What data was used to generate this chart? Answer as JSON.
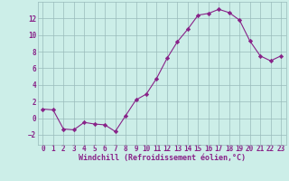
{
  "x": [
    0,
    1,
    2,
    3,
    4,
    5,
    6,
    7,
    8,
    9,
    10,
    11,
    12,
    13,
    14,
    15,
    16,
    17,
    18,
    19,
    20,
    21,
    22,
    23
  ],
  "y": [
    1.1,
    1.0,
    -1.3,
    -1.4,
    -0.5,
    -0.7,
    -0.8,
    -1.6,
    0.3,
    2.2,
    2.9,
    4.8,
    7.2,
    9.2,
    10.7,
    12.4,
    12.6,
    13.1,
    12.7,
    11.8,
    9.3,
    7.5,
    6.9,
    7.5
  ],
  "line_color": "#882288",
  "marker": "D",
  "marker_size": 2.2,
  "bg_color": "#cceee8",
  "grid_color": "#99bbbb",
  "xlabel": "Windchill (Refroidissement éolien,°C)",
  "tick_color": "#882288",
  "xlim": [
    -0.5,
    23.5
  ],
  "ylim": [
    -3.2,
    14.0
  ],
  "yticks": [
    -2,
    0,
    2,
    4,
    6,
    8,
    10,
    12
  ],
  "xticks": [
    0,
    1,
    2,
    3,
    4,
    5,
    6,
    7,
    8,
    9,
    10,
    11,
    12,
    13,
    14,
    15,
    16,
    17,
    18,
    19,
    20,
    21,
    22,
    23
  ],
  "tick_fontsize": 5.5,
  "xlabel_fontsize": 6.0
}
